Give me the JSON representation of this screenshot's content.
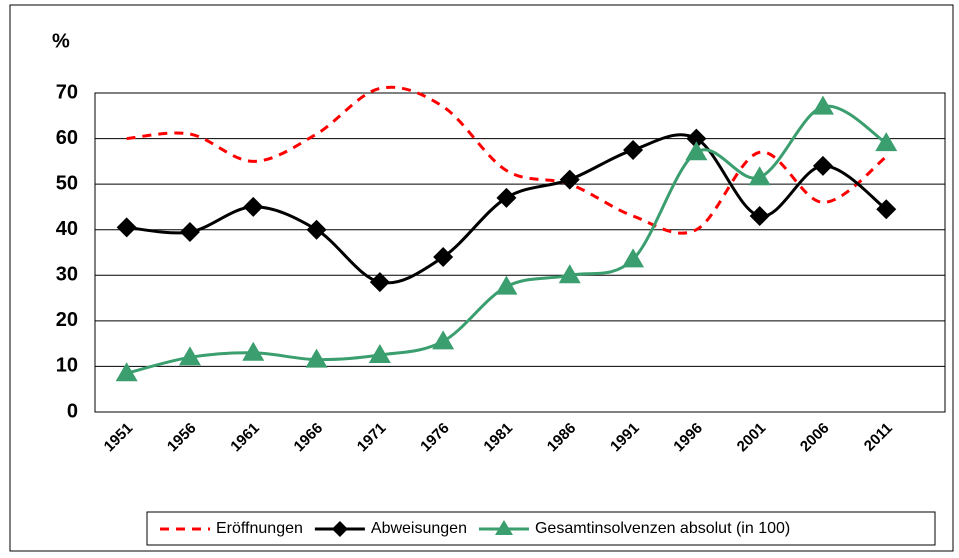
{
  "chart_data": {
    "type": "line",
    "y_unit": "%",
    "categories": [
      "1951",
      "1956",
      "1961",
      "1966",
      "1971",
      "1976",
      "1981",
      "1986",
      "1991",
      "1996",
      "2001",
      "2006",
      "2011"
    ],
    "ylim": [
      0,
      70
    ],
    "yticks": [
      0,
      10,
      20,
      30,
      40,
      50,
      60,
      70
    ],
    "grid": true,
    "series": [
      {
        "name": "Eröffnungen",
        "color": "#ff0000",
        "style": "dashed",
        "marker": "none",
        "values": [
          60,
          61,
          55,
          61,
          71,
          67,
          53,
          50,
          43,
          40,
          57,
          46,
          56
        ]
      },
      {
        "name": "Abweisungen",
        "color": "#000000",
        "style": "solid",
        "marker": "diamond",
        "values": [
          40.5,
          39.5,
          45,
          40,
          28.5,
          34,
          47,
          51,
          57.5,
          60,
          43,
          54,
          44.5
        ]
      },
      {
        "name": "Gesamtinsolvenzen absolut (in 100)",
        "color": "#3a9e6e",
        "style": "solid",
        "marker": "triangle",
        "values": [
          8.5,
          12,
          13,
          11.5,
          12.5,
          15.5,
          27.5,
          30,
          33.5,
          57,
          51.5,
          67,
          59
        ]
      }
    ]
  }
}
